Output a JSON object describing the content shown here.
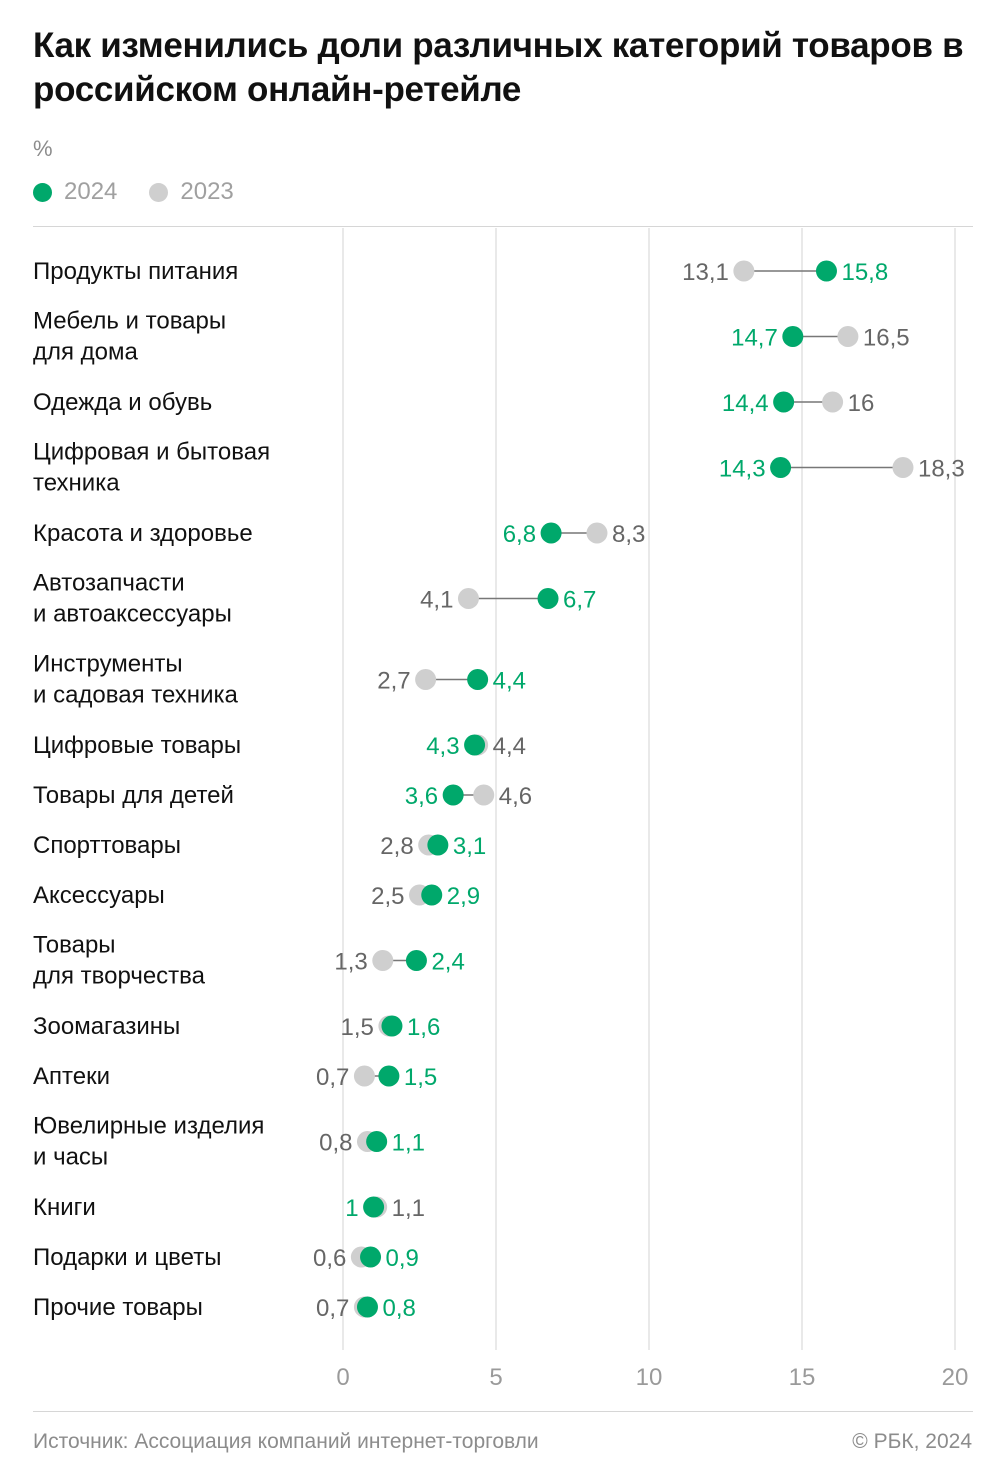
{
  "title": "Как изменились доли различных категорий товаров в российском онлайн-ретейле",
  "unit": "%",
  "legend": [
    {
      "label": "2024",
      "color": "#00a86b"
    },
    {
      "label": "2023",
      "color": "#cfcfcf"
    }
  ],
  "chart_data": {
    "type": "dumbbell",
    "title": "Как изменились доли различных категорий товаров в российском онлайн-ретейле",
    "ylabel": "%",
    "xlim": [
      0,
      20
    ],
    "x_ticks": [
      0,
      5,
      10,
      15,
      20
    ],
    "x_tick_labels": [
      "0",
      "5",
      "10",
      "15",
      "20"
    ],
    "grid": true,
    "legend_position": "top-left",
    "series": [
      {
        "name": "2024",
        "color": "#00a86b"
      },
      {
        "name": "2023",
        "color": "#cfcfcf"
      }
    ],
    "categories": [
      {
        "lines": [
          "Продукты питания"
        ],
        "v2024": 15.8,
        "v2023": 13.1,
        "l2024": "15,8",
        "l2023": "13,1"
      },
      {
        "lines": [
          "Мебель и товары",
          "для дома"
        ],
        "v2024": 14.7,
        "v2023": 16.5,
        "l2024": "14,7",
        "l2023": "16,5"
      },
      {
        "lines": [
          "Одежда и обувь"
        ],
        "v2024": 14.4,
        "v2023": 16,
        "l2024": "14,4",
        "l2023": "16"
      },
      {
        "lines": [
          "Цифровая и бытовая",
          "техника"
        ],
        "v2024": 14.3,
        "v2023": 18.3,
        "l2024": "14,3",
        "l2023": "18,3"
      },
      {
        "lines": [
          "Красота и здоровье"
        ],
        "v2024": 6.8,
        "v2023": 8.3,
        "l2024": "6,8",
        "l2023": "8,3"
      },
      {
        "lines": [
          "Автозапчасти",
          "и автоаксессуары"
        ],
        "v2024": 6.7,
        "v2023": 4.1,
        "l2024": "6,7",
        "l2023": "4,1"
      },
      {
        "lines": [
          "Инструменты",
          "и садовая техника"
        ],
        "v2024": 4.4,
        "v2023": 2.7,
        "l2024": "4,4",
        "l2023": "2,7"
      },
      {
        "lines": [
          "Цифровые товары"
        ],
        "v2024": 4.3,
        "v2023": 4.4,
        "l2024": "4,3",
        "l2023": "4,4"
      },
      {
        "lines": [
          "Товары для детей"
        ],
        "v2024": 3.6,
        "v2023": 4.6,
        "l2024": "3,6",
        "l2023": "4,6"
      },
      {
        "lines": [
          "Спорттовары"
        ],
        "v2024": 3.1,
        "v2023": 2.8,
        "l2024": "3,1",
        "l2023": "2,8"
      },
      {
        "lines": [
          "Аксессуары"
        ],
        "v2024": 2.9,
        "v2023": 2.5,
        "l2024": "2,9",
        "l2023": "2,5"
      },
      {
        "lines": [
          "Товары",
          "для творчества"
        ],
        "v2024": 2.4,
        "v2023": 1.3,
        "l2024": "2,4",
        "l2023": "1,3"
      },
      {
        "lines": [
          "Зоомагазины"
        ],
        "v2024": 1.6,
        "v2023": 1.5,
        "l2024": "1,6",
        "l2023": "1,5"
      },
      {
        "lines": [
          "Аптеки"
        ],
        "v2024": 1.5,
        "v2023": 0.7,
        "l2024": "1,5",
        "l2023": "0,7"
      },
      {
        "lines": [
          "Ювелирные изделия",
          "и часы"
        ],
        "v2024": 1.1,
        "v2023": 0.8,
        "l2024": "1,1",
        "l2023": "0,8"
      },
      {
        "lines": [
          "Книги"
        ],
        "v2024": 1,
        "v2023": 1.1,
        "l2024": "1",
        "l2023": "1,1"
      },
      {
        "lines": [
          "Подарки и цветы"
        ],
        "v2024": 0.9,
        "v2023": 0.6,
        "l2024": "0,9",
        "l2023": "0,6"
      },
      {
        "lines": [
          "Прочие товары"
        ],
        "v2024": 0.8,
        "v2023": 0.7,
        "l2024": "0,8",
        "l2023": "0,7"
      }
    ]
  },
  "footer": {
    "source": "Источник: Ассоциация компаний интернет-торговли",
    "copyright": "© РБК, 2024"
  }
}
